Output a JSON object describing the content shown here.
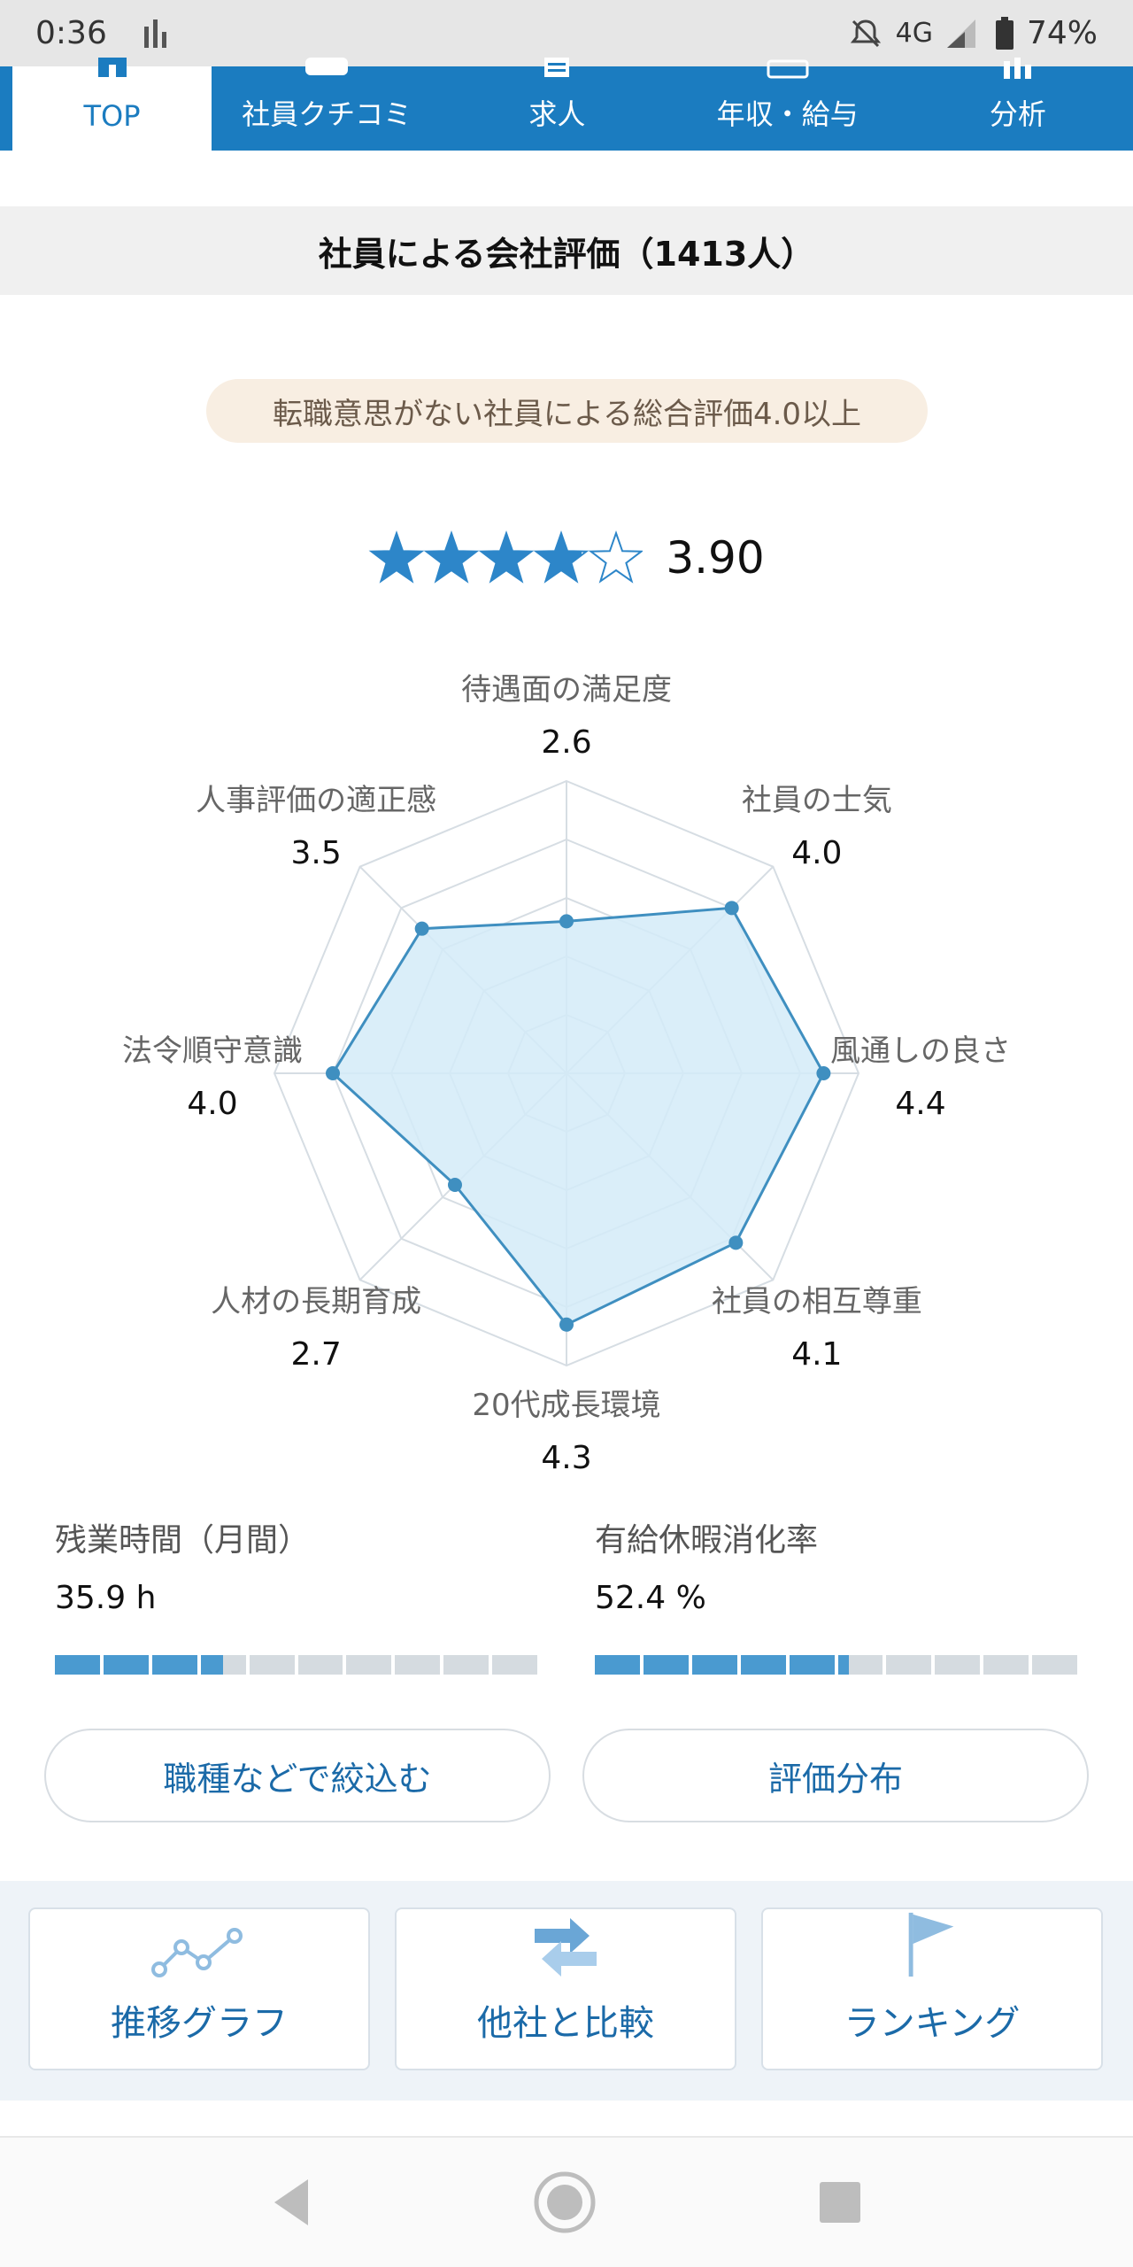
{
  "status_bar": {
    "time": "0:36",
    "network": "4G",
    "battery": "74%"
  },
  "nav": {
    "tabs": [
      {
        "label": "TOP",
        "active": true
      },
      {
        "label": "社員クチコミ",
        "active": false
      },
      {
        "label": "求人",
        "active": false
      },
      {
        "label": "年収・給与",
        "active": false
      },
      {
        "label": "分析",
        "active": false
      }
    ]
  },
  "section": {
    "title": "社員による会社評価（1413人）"
  },
  "badge": {
    "text": "転職意思がない社員による総合評価4.0以上"
  },
  "rating": {
    "score_text": "3.90",
    "stars": 3.9,
    "max_stars": 5
  },
  "chart_data": {
    "type": "radar",
    "max": 5,
    "axes": [
      {
        "label": "待遇面の満足度",
        "value": 2.6,
        "value_text": "2.6"
      },
      {
        "label": "社員の士気",
        "value": 4.0,
        "value_text": "4.0"
      },
      {
        "label": "風通しの良さ",
        "value": 4.4,
        "value_text": "4.4"
      },
      {
        "label": "社員の相互尊重",
        "value": 4.1,
        "value_text": "4.1"
      },
      {
        "label": "20代成長環境",
        "value": 4.3,
        "value_text": "4.3"
      },
      {
        "label": "人材の長期育成",
        "value": 2.7,
        "value_text": "2.7"
      },
      {
        "label": "法令順守意識",
        "value": 4.0,
        "value_text": "4.0"
      },
      {
        "label": "人事評価の適正感",
        "value": 3.5,
        "value_text": "3.5"
      }
    ]
  },
  "stats": {
    "overtime": {
      "label": "残業時間（月間）",
      "value": "35.9  h",
      "fill_fraction": 0.35
    },
    "paid_leave": {
      "label": "有給休暇消化率",
      "value": "52.4 %",
      "fill_fraction": 0.524
    }
  },
  "buttons": {
    "filter": "職種などで絞込む",
    "distribution": "評価分布"
  },
  "tools": {
    "trend": "推移グラフ",
    "compare": "他社と比較",
    "ranking": "ランキング"
  },
  "colors": {
    "brand": "#1b7cc0",
    "accent": "#4a9ad0",
    "radar_fill": "#d4ebf8"
  }
}
